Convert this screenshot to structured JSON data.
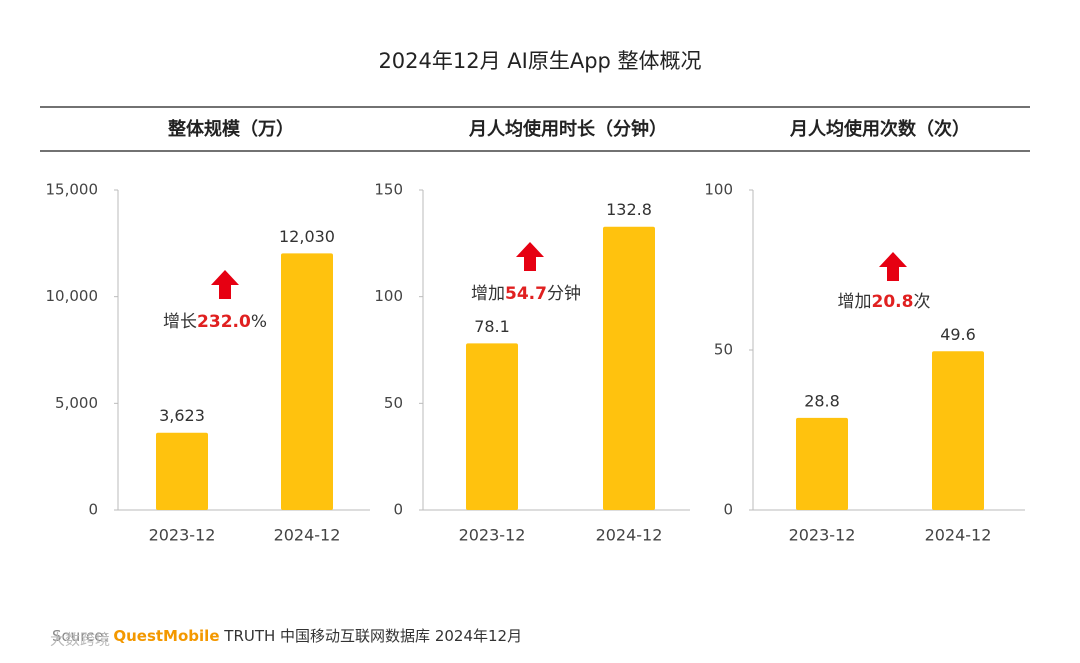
{
  "title": "2024年12月 AI原生App 整体概况",
  "source": {
    "label": "Source:",
    "brand": "QuestMobile",
    "text": "TRUTH 中国移动互联网数据库 2024年12月"
  },
  "watermark": "大数跨境",
  "chart_data": [
    {
      "type": "bar",
      "title": "整体规模（万）",
      "categories": [
        "2023-12",
        "2024-12"
      ],
      "values": [
        3623,
        12030
      ],
      "value_labels": [
        "3,623",
        "12,030"
      ],
      "color": "#ffc20e",
      "ylim": [
        0,
        15000
      ],
      "yticks": [
        0,
        {
          "value": 5000,
          "label": "5,000"
        },
        {
          "value": 10000,
          "label": "10,000"
        },
        {
          "value": 15000,
          "label": "15,000"
        }
      ],
      "annotation": {
        "prefix": "增长",
        "highlight": "232.0",
        "suffix": "%"
      }
    },
    {
      "type": "bar",
      "title": "月人均使用时长（分钟）",
      "categories": [
        "2023-12",
        "2024-12"
      ],
      "values": [
        78.1,
        132.8
      ],
      "color": "#ffc20e",
      "ylim": [
        0,
        150
      ],
      "yticks": [
        0,
        50,
        100,
        150
      ],
      "annotation": {
        "prefix": "增加",
        "highlight": "54.7",
        "suffix": "分钟"
      }
    },
    {
      "type": "bar",
      "title": "月人均使用次数（次）",
      "categories": [
        "2023-12",
        "2024-12"
      ],
      "values": [
        28.8,
        49.6
      ],
      "color": "#ffc20e",
      "ylim": [
        0,
        100
      ],
      "yticks": [
        0,
        50,
        100
      ],
      "annotation": {
        "prefix": "增加",
        "highlight": "20.8",
        "suffix": "次"
      }
    }
  ]
}
